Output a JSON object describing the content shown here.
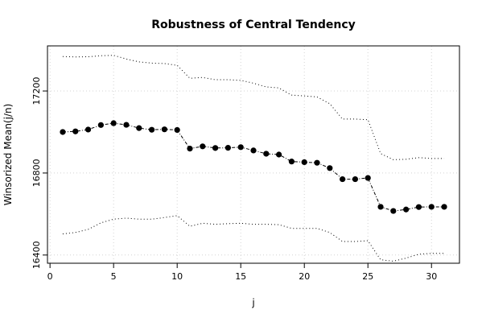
{
  "chart_data": {
    "type": "line",
    "title": "Robustness of Central Tendency",
    "xlabel": "j",
    "ylabel": "Winsorized Mean(j/n)",
    "xlim": [
      -0.2,
      32.2
    ],
    "ylim": [
      16360,
      17420
    ],
    "x_ticks": [
      0,
      5,
      10,
      15,
      20,
      25,
      30
    ],
    "y_ticks": [
      16400,
      16800,
      17200
    ],
    "grid": true,
    "legend": "none",
    "x": [
      1,
      2,
      3,
      4,
      5,
      6,
      7,
      8,
      9,
      10,
      11,
      12,
      13,
      14,
      15,
      16,
      17,
      18,
      19,
      20,
      21,
      22,
      23,
      24,
      25,
      26,
      27,
      28,
      29,
      30,
      31
    ],
    "series": [
      {
        "role": "winsorized-mean",
        "style": "dot-dash-points",
        "color": "#000000",
        "values": [
          17000,
          17003,
          17012,
          17034,
          17043,
          17035,
          17019,
          17011,
          17013,
          17010,
          16919,
          16930,
          16922,
          16923,
          16926,
          16910,
          16894,
          16890,
          16856,
          16853,
          16850,
          16824,
          16770,
          16770,
          16776,
          16635,
          16615,
          16622,
          16634,
          16635,
          16635
        ]
      },
      {
        "role": "upper-band",
        "style": "dotted",
        "color": "#000000",
        "values": [
          17368,
          17366,
          17367,
          17372,
          17374,
          17356,
          17342,
          17336,
          17334,
          17325,
          17262,
          17266,
          17255,
          17255,
          17252,
          17238,
          17220,
          17215,
          17180,
          17176,
          17171,
          17138,
          17063,
          17063,
          17060,
          16895,
          16865,
          16867,
          16875,
          16871,
          16871
        ]
      },
      {
        "role": "lower-band",
        "style": "dotted",
        "color": "#000000",
        "values": [
          16503,
          16510,
          16525,
          16557,
          16575,
          16580,
          16575,
          16575,
          16583,
          16592,
          16540,
          16555,
          16550,
          16553,
          16555,
          16550,
          16550,
          16548,
          16530,
          16530,
          16530,
          16510,
          16466,
          16466,
          16470,
          16377,
          16370,
          16385,
          16404,
          16408,
          16408
        ]
      }
    ]
  }
}
